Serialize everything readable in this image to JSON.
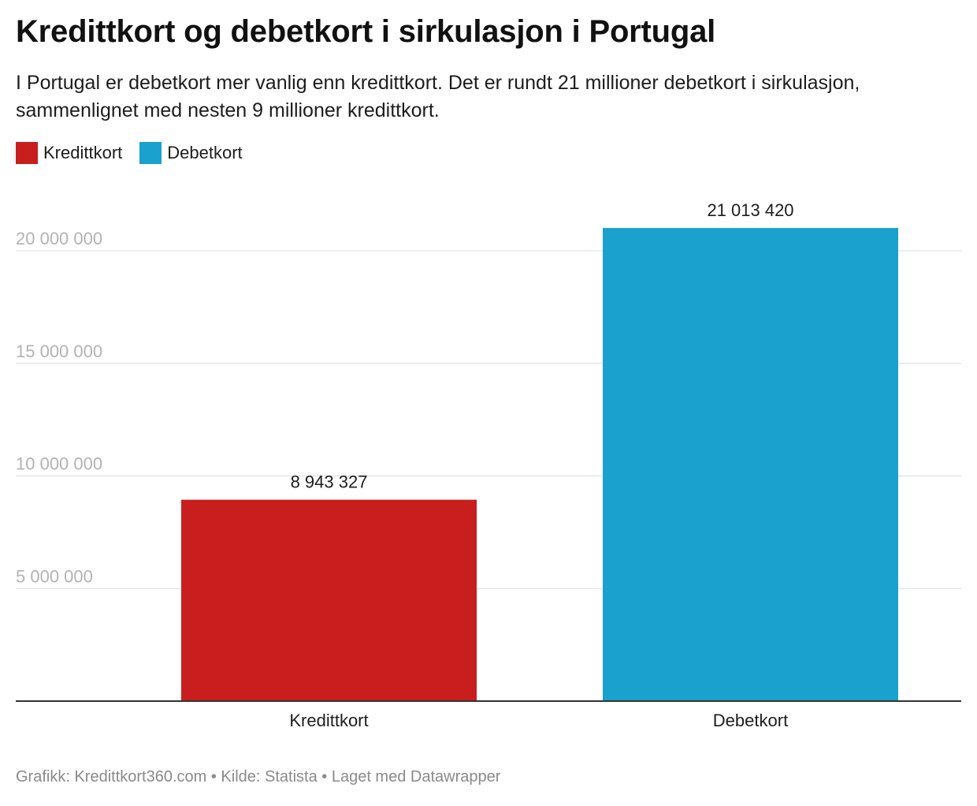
{
  "header": {
    "title": "Kredittkort og debetkort i sirkulasjon i Portugal",
    "subtitle": "I Portugal er debetkort mer vanlig enn kredittkort. Det er rundt 21 millioner debetkort i sirkulasjon, sammenlignet med nesten 9 millioner kredittkort."
  },
  "legend": [
    {
      "label": "Kredittkort",
      "color": "#c81e1e"
    },
    {
      "label": "Debetkort",
      "color": "#1aa1cd"
    }
  ],
  "chart_data": {
    "type": "bar",
    "categories": [
      "Kredittkort",
      "Debetkort"
    ],
    "values": [
      8943327,
      21013420
    ],
    "value_labels": [
      "8 943 327",
      "21 013 420"
    ],
    "colors": [
      "#c81e1e",
      "#1aa1cd"
    ],
    "ylim": [
      0,
      21000000
    ],
    "yticks": [
      5000000,
      10000000,
      15000000,
      20000000
    ],
    "ytick_labels": [
      "5 000 000",
      "10 000 000",
      "15 000 000",
      "20 000 000"
    ],
    "grid": true,
    "legend_position": "top-left"
  },
  "footer": {
    "text": "Grafikk: Kredittkort360.com • Kilde: Statista • Laget med Datawrapper"
  }
}
